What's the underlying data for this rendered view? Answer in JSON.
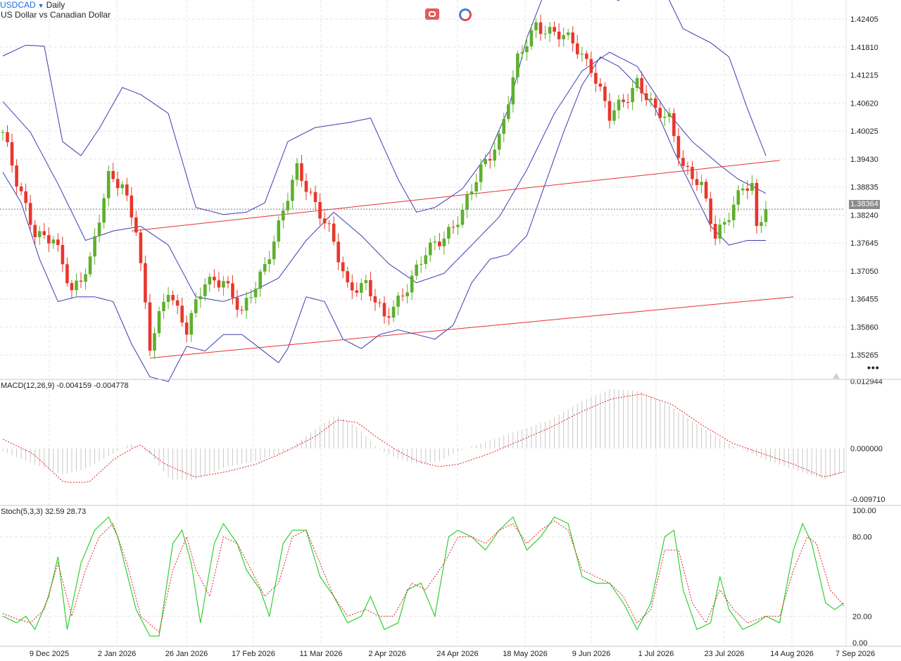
{
  "header": {
    "symbol": "USDCAD",
    "interval": "Daily",
    "description": "US Dollar vs Canadian Dollar"
  },
  "toolbar": {
    "link_icon": "link-chain-icon",
    "sync_icon": "sync-circle-icon",
    "more_icon": "more-dots-icon",
    "more_label": "•••"
  },
  "colors": {
    "bull": "#5db02d",
    "bear": "#e8372c",
    "bollinger": "#3c3cb4",
    "channel": "#e83030",
    "grid": "#e4e4e4",
    "macd_hist": "#c8c8c8",
    "macd_signal": "#e02020",
    "stoch_k": "#22cc22",
    "stoch_d": "#e02020"
  },
  "indicators": {
    "macd_label": "MACD(12,26,9) -0.004159 -0.004778",
    "stoch_label": "Stoch(5,3,3) 32.59 28.73"
  },
  "chart_data": {
    "type": "candlestick",
    "current_price_label": "1.38364",
    "current_price": 1.38364,
    "price_axis": {
      "ticks": [
        "1.42405",
        "1.41810",
        "1.41215",
        "1.40620",
        "1.40025",
        "1.39430",
        "1.38835",
        "1.38240",
        "1.37645",
        "1.37050",
        "1.36455",
        "1.35860",
        "1.35265"
      ],
      "range": [
        1.3476,
        1.4281
      ]
    },
    "time_axis": {
      "labels": [
        "9 Dec 2025",
        "2 Jan 2026",
        "26 Jan 2026",
        "17 Feb 2026",
        "11 Mar 2026",
        "2 Apr 2026",
        "24 Apr 2026",
        "18 May 2026",
        "9 Jun 2026",
        "1 Jul 2026",
        "23 Jul 2026",
        "14 Aug 2026",
        "7 Sep 2026"
      ]
    },
    "price_pivots": [
      [
        0,
        1.4
      ],
      [
        3,
        1.389
      ],
      [
        7,
        1.379
      ],
      [
        11,
        1.377
      ],
      [
        15,
        1.366
      ],
      [
        19,
        1.373
      ],
      [
        23,
        1.39
      ],
      [
        26,
        1.389
      ],
      [
        29,
        1.38
      ],
      [
        32,
        1.354
      ],
      [
        36,
        1.367
      ],
      [
        40,
        1.358
      ],
      [
        44,
        1.368
      ],
      [
        48,
        1.369
      ],
      [
        52,
        1.361
      ],
      [
        57,
        1.372
      ],
      [
        60,
        1.38
      ],
      [
        64,
        1.392
      ],
      [
        67,
        1.387
      ],
      [
        71,
        1.379
      ],
      [
        75,
        1.367
      ],
      [
        79,
        1.368
      ],
      [
        83,
        1.36
      ],
      [
        87,
        1.366
      ],
      [
        92,
        1.374
      ],
      [
        96,
        1.378
      ],
      [
        100,
        1.383
      ],
      [
        104,
        1.392
      ],
      [
        108,
        1.399
      ],
      [
        112,
        1.415
      ],
      [
        116,
        1.423
      ],
      [
        120,
        1.421
      ],
      [
        124,
        1.419
      ],
      [
        128,
        1.414
      ],
      [
        132,
        1.403
      ],
      [
        136,
        1.408
      ],
      [
        138,
        1.411
      ],
      [
        142,
        1.404
      ],
      [
        145,
        1.403
      ],
      [
        148,
        1.393
      ],
      [
        152,
        1.388
      ],
      [
        155,
        1.378
      ],
      [
        158,
        1.383
      ],
      [
        161,
        1.388
      ],
      [
        163,
        1.388
      ],
      [
        164,
        1.379
      ],
      [
        165,
        1.382
      ],
      [
        166,
        1.38364
      ]
    ],
    "bollinger": {
      "upper": [
        [
          0,
          1.4162
        ],
        [
          5,
          1.4185
        ],
        [
          9,
          1.4183
        ],
        [
          13,
          1.398
        ],
        [
          17,
          1.395
        ],
        [
          21,
          1.4008
        ],
        [
          26,
          1.4095
        ],
        [
          30,
          1.408
        ],
        [
          36,
          1.404
        ],
        [
          42,
          1.384
        ],
        [
          48,
          1.3825
        ],
        [
          53,
          1.383
        ],
        [
          57,
          1.385
        ],
        [
          62,
          1.398
        ],
        [
          68,
          1.401
        ],
        [
          75,
          1.402
        ],
        [
          80,
          1.403
        ],
        [
          86,
          1.39
        ],
        [
          90,
          1.383
        ],
        [
          94,
          1.384
        ],
        [
          100,
          1.388
        ],
        [
          106,
          1.396
        ],
        [
          110,
          1.405
        ],
        [
          114,
          1.42
        ],
        [
          118,
          1.43
        ],
        [
          124,
          1.433
        ],
        [
          128,
          1.43
        ],
        [
          134,
          1.428
        ],
        [
          140,
          1.433
        ],
        [
          144,
          1.43
        ],
        [
          148,
          1.422
        ],
        [
          154,
          1.419
        ],
        [
          158,
          1.416
        ],
        [
          162,
          1.405
        ],
        [
          166,
          1.395
        ]
      ],
      "middle": [
        [
          0,
          1.4065
        ],
        [
          6,
          1.4
        ],
        [
          12,
          1.389
        ],
        [
          18,
          1.377
        ],
        [
          24,
          1.379
        ],
        [
          30,
          1.38
        ],
        [
          36,
          1.376
        ],
        [
          42,
          1.365
        ],
        [
          48,
          1.364
        ],
        [
          54,
          1.366
        ],
        [
          60,
          1.369
        ],
        [
          66,
          1.377
        ],
        [
          72,
          1.383
        ],
        [
          78,
          1.378
        ],
        [
          84,
          1.372
        ],
        [
          90,
          1.368
        ],
        [
          96,
          1.37
        ],
        [
          102,
          1.376
        ],
        [
          108,
          1.382
        ],
        [
          114,
          1.392
        ],
        [
          120,
          1.404
        ],
        [
          126,
          1.413
        ],
        [
          132,
          1.417
        ],
        [
          138,
          1.414
        ],
        [
          144,
          1.405
        ],
        [
          150,
          1.398
        ],
        [
          156,
          1.393
        ],
        [
          160,
          1.39
        ],
        [
          166,
          1.387
        ]
      ],
      "lower": [
        [
          0,
          1.3915
        ],
        [
          4,
          1.385
        ],
        [
          8,
          1.373
        ],
        [
          12,
          1.364
        ],
        [
          16,
          1.365
        ],
        [
          20,
          1.365
        ],
        [
          24,
          1.364
        ],
        [
          28,
          1.355
        ],
        [
          32,
          1.348
        ],
        [
          36,
          1.347
        ],
        [
          40,
          1.3545
        ],
        [
          44,
          1.3535
        ],
        [
          48,
          1.357
        ],
        [
          52,
          1.357
        ],
        [
          56,
          1.354
        ],
        [
          60,
          1.351
        ],
        [
          62,
          1.354
        ],
        [
          66,
          1.365
        ],
        [
          70,
          1.364
        ],
        [
          74,
          1.356
        ],
        [
          78,
          1.354
        ],
        [
          82,
          1.357
        ],
        [
          86,
          1.358
        ],
        [
          90,
          1.357
        ],
        [
          94,
          1.356
        ],
        [
          98,
          1.359
        ],
        [
          102,
          1.368
        ],
        [
          106,
          1.373
        ],
        [
          110,
          1.374
        ],
        [
          114,
          1.378
        ],
        [
          118,
          1.389
        ],
        [
          122,
          1.4
        ],
        [
          126,
          1.41
        ],
        [
          130,
          1.416
        ],
        [
          134,
          1.414
        ],
        [
          138,
          1.41
        ],
        [
          142,
          1.405
        ],
        [
          146,
          1.396
        ],
        [
          150,
          1.388
        ],
        [
          154,
          1.38
        ],
        [
          158,
          1.376
        ],
        [
          162,
          1.377
        ],
        [
          166,
          1.377
        ]
      ]
    },
    "channel_upper": [
      [
        28,
        1.379
      ],
      [
        169,
        1.394
      ]
    ],
    "channel_lower": [
      [
        32,
        1.352
      ],
      [
        172,
        1.365
      ]
    ],
    "macd": {
      "axis_ticks": [
        "0.012944",
        "0.000000",
        "-0.009710"
      ],
      "range": [
        -0.01095,
        0.01315
      ],
      "hist_pivots": [
        [
          0,
          -0.0005
        ],
        [
          6,
          -0.003
        ],
        [
          12,
          -0.005
        ],
        [
          16,
          -0.004
        ],
        [
          20,
          -0.002
        ],
        [
          25,
          0.001
        ],
        [
          29,
          -0.001
        ],
        [
          33,
          -0.006
        ],
        [
          38,
          -0.006
        ],
        [
          44,
          -0.0035
        ],
        [
          50,
          -0.0025
        ],
        [
          56,
          -0.0005
        ],
        [
          62,
          0.004
        ],
        [
          66,
          0.0065
        ],
        [
          70,
          0.004
        ],
        [
          74,
          0.0
        ],
        [
          78,
          -0.002
        ],
        [
          82,
          -0.003
        ],
        [
          86,
          -0.0025
        ],
        [
          90,
          -0.0005
        ],
        [
          96,
          0.0015
        ],
        [
          102,
          0.0035
        ],
        [
          108,
          0.0055
        ],
        [
          114,
          0.009
        ],
        [
          120,
          0.0115
        ],
        [
          126,
          0.011
        ],
        [
          132,
          0.008
        ],
        [
          138,
          0.004
        ],
        [
          144,
          0.0005
        ],
        [
          150,
          -0.002
        ],
        [
          156,
          -0.004
        ],
        [
          162,
          -0.006
        ],
        [
          166,
          -0.0045
        ]
      ],
      "signal_pivots": [
        [
          0,
          0.0018
        ],
        [
          6,
          -0.001
        ],
        [
          12,
          -0.0065
        ],
        [
          17,
          -0.0065
        ],
        [
          22,
          -0.002
        ],
        [
          27,
          0.0008
        ],
        [
          32,
          -0.003
        ],
        [
          38,
          -0.0055
        ],
        [
          44,
          -0.0045
        ],
        [
          50,
          -0.003
        ],
        [
          56,
          -0.0005
        ],
        [
          62,
          0.0025
        ],
        [
          66,
          0.0055
        ],
        [
          70,
          0.005
        ],
        [
          74,
          0.002
        ],
        [
          78,
          -0.0005
        ],
        [
          82,
          -0.0025
        ],
        [
          86,
          -0.0035
        ],
        [
          90,
          -0.003
        ],
        [
          96,
          -0.001
        ],
        [
          102,
          0.0015
        ],
        [
          108,
          0.004
        ],
        [
          114,
          0.007
        ],
        [
          120,
          0.0095
        ],
        [
          126,
          0.0105
        ],
        [
          132,
          0.0085
        ],
        [
          138,
          0.0045
        ],
        [
          144,
          0.001
        ],
        [
          150,
          -0.001
        ],
        [
          156,
          -0.003
        ],
        [
          162,
          -0.0055
        ],
        [
          166,
          -0.0045
        ]
      ]
    },
    "stoch": {
      "axis_ticks": [
        "100.00",
        "80.00",
        "20.00",
        "0.00"
      ],
      "levels": [
        80,
        20
      ],
      "k_pivots": [
        [
          0,
          20
        ],
        [
          3,
          15
        ],
        [
          5,
          20
        ],
        [
          7,
          10
        ],
        [
          10,
          35
        ],
        [
          12,
          65
        ],
        [
          14,
          10
        ],
        [
          17,
          60
        ],
        [
          20,
          85
        ],
        [
          23,
          95
        ],
        [
          25,
          80
        ],
        [
          29,
          25
        ],
        [
          32,
          5
        ],
        [
          34,
          5
        ],
        [
          37,
          75
        ],
        [
          39,
          85
        ],
        [
          41,
          60
        ],
        [
          43,
          15
        ],
        [
          46,
          75
        ],
        [
          48,
          90
        ],
        [
          51,
          75
        ],
        [
          53,
          55
        ],
        [
          56,
          40
        ],
        [
          58,
          20
        ],
        [
          61,
          75
        ],
        [
          63,
          85
        ],
        [
          66,
          85
        ],
        [
          69,
          50
        ],
        [
          72,
          35
        ],
        [
          75,
          15
        ],
        [
          78,
          20
        ],
        [
          80,
          35
        ],
        [
          83,
          10
        ],
        [
          86,
          15
        ],
        [
          88,
          40
        ],
        [
          91,
          45
        ],
        [
          94,
          20
        ],
        [
          97,
          80
        ],
        [
          99,
          85
        ],
        [
          102,
          80
        ],
        [
          105,
          70
        ],
        [
          108,
          85
        ],
        [
          111,
          95
        ],
        [
          114,
          70
        ],
        [
          117,
          80
        ],
        [
          120,
          95
        ],
        [
          123,
          90
        ],
        [
          126,
          50
        ],
        [
          129,
          45
        ],
        [
          132,
          45
        ],
        [
          135,
          30
        ],
        [
          138,
          10
        ],
        [
          141,
          30
        ],
        [
          144,
          80
        ],
        [
          146,
          85
        ],
        [
          148,
          40
        ],
        [
          151,
          10
        ],
        [
          154,
          15
        ],
        [
          156,
          50
        ],
        [
          158,
          25
        ],
        [
          161,
          10
        ],
        [
          164,
          15
        ],
        [
          166,
          20
        ],
        [
          169,
          15
        ],
        [
          172,
          70
        ],
        [
          174,
          90
        ],
        [
          176,
          75
        ],
        [
          179,
          30
        ],
        [
          181,
          25
        ],
        [
          183,
          30
        ]
      ],
      "d_pivots": [
        [
          0,
          22
        ],
        [
          3,
          18
        ],
        [
          6,
          15
        ],
        [
          9,
          25
        ],
        [
          12,
          60
        ],
        [
          15,
          20
        ],
        [
          18,
          55
        ],
        [
          21,
          80
        ],
        [
          24,
          90
        ],
        [
          27,
          60
        ],
        [
          30,
          20
        ],
        [
          34,
          8
        ],
        [
          37,
          55
        ],
        [
          40,
          80
        ],
        [
          42,
          55
        ],
        [
          45,
          35
        ],
        [
          48,
          80
        ],
        [
          51,
          75
        ],
        [
          54,
          55
        ],
        [
          57,
          35
        ],
        [
          60,
          45
        ],
        [
          63,
          80
        ],
        [
          66,
          85
        ],
        [
          69,
          60
        ],
        [
          72,
          35
        ],
        [
          75,
          20
        ],
        [
          79,
          25
        ],
        [
          82,
          20
        ],
        [
          85,
          20
        ],
        [
          89,
          45
        ],
        [
          92,
          40
        ],
        [
          96,
          60
        ],
        [
          99,
          80
        ],
        [
          102,
          80
        ],
        [
          105,
          75
        ],
        [
          108,
          85
        ],
        [
          111,
          90
        ],
        [
          114,
          75
        ],
        [
          117,
          85
        ],
        [
          120,
          92
        ],
        [
          123,
          85
        ],
        [
          126,
          55
        ],
        [
          129,
          50
        ],
        [
          132,
          45
        ],
        [
          135,
          35
        ],
        [
          138,
          15
        ],
        [
          141,
          25
        ],
        [
          144,
          70
        ],
        [
          147,
          70
        ],
        [
          150,
          30
        ],
        [
          153,
          15
        ],
        [
          156,
          40
        ],
        [
          159,
          25
        ],
        [
          162,
          15
        ],
        [
          166,
          20
        ],
        [
          169,
          20
        ],
        [
          172,
          55
        ],
        [
          175,
          80
        ],
        [
          177,
          75
        ],
        [
          180,
          40
        ],
        [
          183,
          28
        ]
      ]
    }
  }
}
